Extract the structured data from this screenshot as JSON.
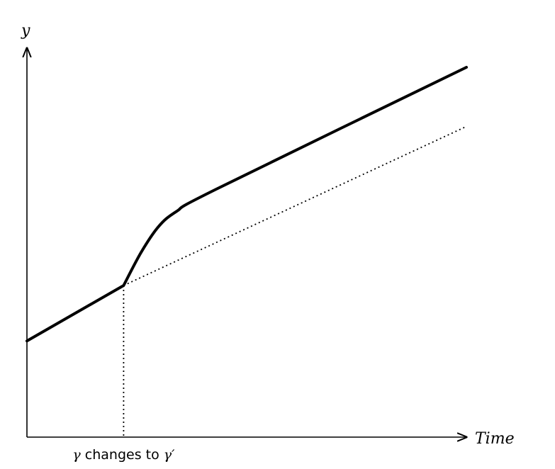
{
  "chart_data": {
    "type": "line",
    "xlabel": "Time",
    "ylabel": "y",
    "grid": false,
    "series": [
      {
        "style": "solid",
        "color": "#000000",
        "points": [
          [
            0,
            0.26
          ],
          [
            0.22,
            0.41
          ],
          [
            0.26,
            0.5
          ],
          [
            0.3,
            0.57
          ],
          [
            0.34,
            0.61
          ],
          [
            0.43,
            0.67
          ],
          [
            1.0,
            1.0
          ]
        ]
      },
      {
        "style": "dotted",
        "color": "#000000",
        "points": [
          [
            0.22,
            0.41
          ],
          [
            1.0,
            0.84
          ]
        ]
      }
    ],
    "annotation": {
      "x": 0.22,
      "style": "dotted-vertical",
      "label_prefix": "γ",
      "label_text": " changes to ",
      "label_suffix": "γ′"
    }
  }
}
